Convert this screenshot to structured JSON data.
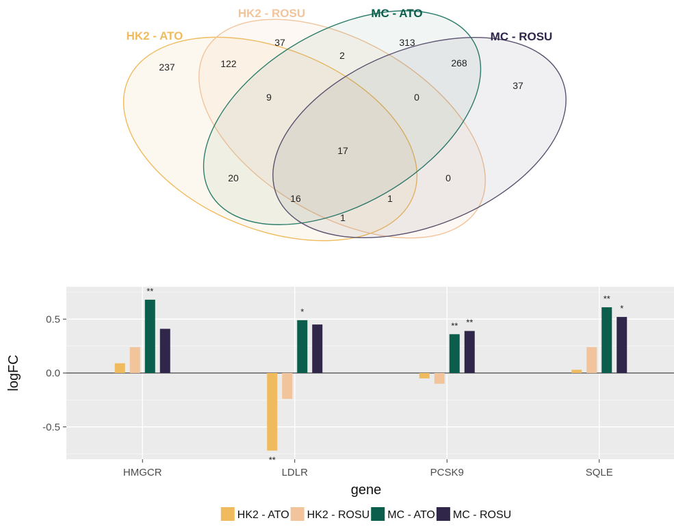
{
  "colors": {
    "HK2 - ATO": "#f0bb5e",
    "HK2 - ROSU": "#f2c49c",
    "MC - ATO": "#0b5e4b",
    "MC - ROSU": "#30264a"
  },
  "venn": {
    "sets": [
      {
        "name": "HK2 - ATO",
        "color": "#f0bb5e"
      },
      {
        "name": "HK2 - ROSU",
        "color": "#f2c49c"
      },
      {
        "name": "MC - ATO",
        "color": "#0b5e4b"
      },
      {
        "name": "MC - ROSU",
        "color": "#30264a"
      }
    ],
    "regions": [
      {
        "sets": [
          "HK2 - ATO"
        ],
        "count": "237"
      },
      {
        "sets": [
          "HK2 - ROSU"
        ],
        "count": "37"
      },
      {
        "sets": [
          "MC - ATO"
        ],
        "count": "313"
      },
      {
        "sets": [
          "MC - ROSU"
        ],
        "count": "37"
      },
      {
        "sets": [
          "HK2 - ATO",
          "HK2 - ROSU"
        ],
        "count": "122"
      },
      {
        "sets": [
          "HK2 - ROSU",
          "MC - ATO"
        ],
        "count": "2"
      },
      {
        "sets": [
          "MC - ATO",
          "MC - ROSU"
        ],
        "count": "268"
      },
      {
        "sets": [
          "HK2 - ATO",
          "HK2 - ROSU",
          "MC - ATO"
        ],
        "count": "9"
      },
      {
        "sets": [
          "HK2 - ROSU",
          "MC - ATO",
          "MC - ROSU"
        ],
        "count": "0"
      },
      {
        "sets": [
          "HK2 - ATO",
          "HK2 - ROSU",
          "MC - ATO",
          "MC - ROSU"
        ],
        "count": "17"
      },
      {
        "sets": [
          "HK2 - ATO",
          "MC - ATO"
        ],
        "count": "20"
      },
      {
        "sets": [
          "HK2 - ROSU",
          "MC - ROSU"
        ],
        "count": "0"
      },
      {
        "sets": [
          "HK2 - ATO",
          "MC - ATO",
          "MC - ROSU"
        ],
        "count": "16"
      },
      {
        "sets": [
          "HK2 - ATO",
          "HK2 - ROSU",
          "MC - ROSU"
        ],
        "count": "1"
      },
      {
        "sets": [
          "HK2 - ATO",
          "MC - ROSU"
        ],
        "count": "1"
      }
    ]
  },
  "chart_data": {
    "type": "bar",
    "xlabel": "gene",
    "ylabel": "logFC",
    "categories": [
      "HMGCR",
      "LDLR",
      "PCSK9",
      "SQLE"
    ],
    "yticks": [
      -0.5,
      0.0,
      0.5
    ],
    "ytick_labels": [
      "-0.5",
      "0.0",
      "0.5"
    ],
    "ylim": [
      -0.8,
      0.8
    ],
    "grid": true,
    "legend_position": "bottom",
    "series": [
      {
        "name": "HK2 - ATO",
        "color": "#f0bb5e",
        "values": [
          0.09,
          -0.72,
          -0.05,
          0.03
        ],
        "significance": [
          "",
          "**",
          "",
          ""
        ]
      },
      {
        "name": "HK2 - ROSU",
        "color": "#f2c49c",
        "values": [
          0.24,
          -0.24,
          -0.1,
          0.24
        ],
        "significance": [
          "",
          "",
          "",
          ""
        ]
      },
      {
        "name": "MC - ATO",
        "color": "#0b5e4b",
        "values": [
          0.68,
          0.49,
          0.36,
          0.61
        ],
        "significance": [
          "**",
          "*",
          "**",
          "**"
        ]
      },
      {
        "name": "MC - ROSU",
        "color": "#30264a",
        "values": [
          0.41,
          0.45,
          0.39,
          0.52
        ],
        "significance": [
          "",
          "",
          "**",
          "*"
        ]
      }
    ]
  }
}
